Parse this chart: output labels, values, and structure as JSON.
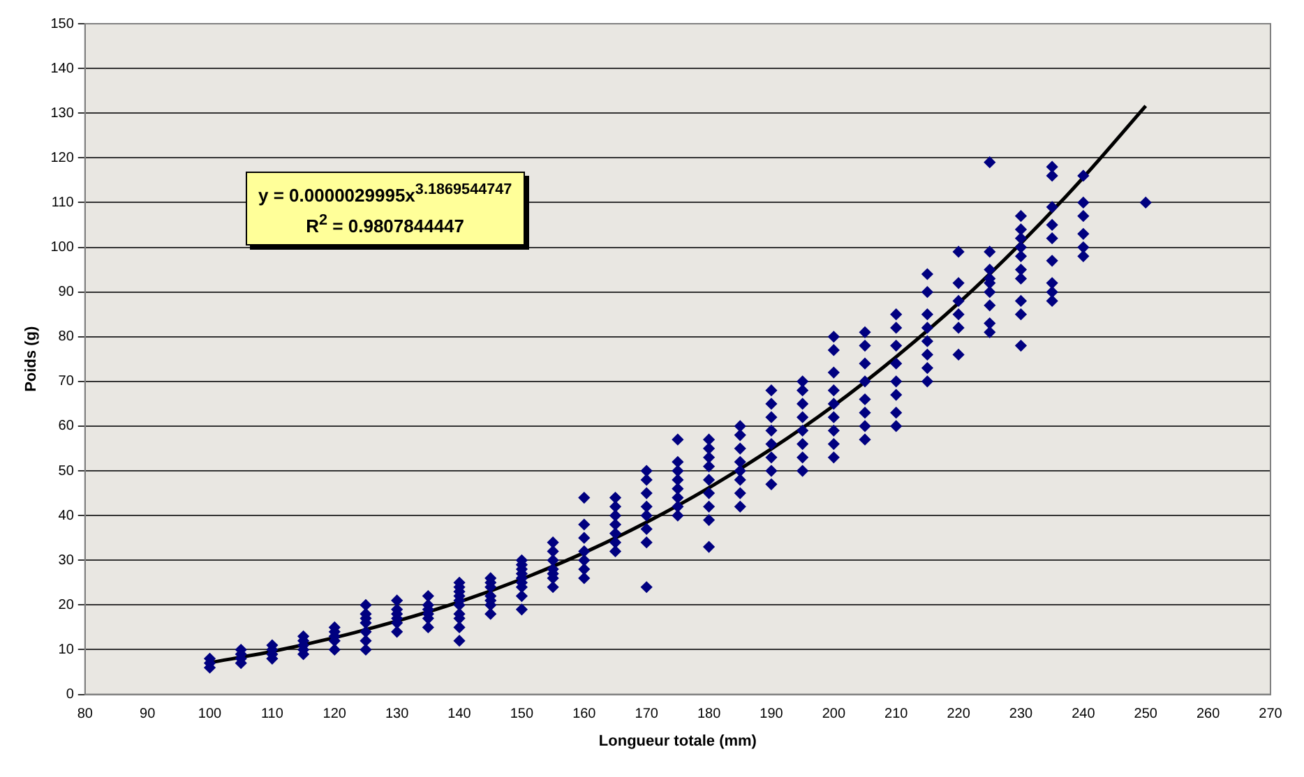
{
  "chart_data": {
    "type": "scatter",
    "xlabel": "Longueur totale (mm)",
    "ylabel": "Poids (g)",
    "xlim": [
      80,
      270
    ],
    "xticks": [
      80,
      90,
      100,
      110,
      120,
      130,
      140,
      150,
      160,
      170,
      180,
      190,
      200,
      210,
      220,
      230,
      240,
      250,
      260,
      270
    ],
    "ylim": [
      0,
      150
    ],
    "yticks": [
      0,
      10,
      20,
      30,
      40,
      50,
      60,
      70,
      80,
      90,
      100,
      110,
      120,
      130,
      140,
      150
    ],
    "grid": "y",
    "legend": false,
    "annotations": [
      "y = 0.0000029995x$^{3.1869544747}$",
      "R$^{2}$ = 0.9807844447"
    ],
    "series": [
      {
        "color": "#000080",
        "marker": "diamond",
        "x": [
          100,
          100,
          100,
          105,
          105,
          105,
          105,
          110,
          110,
          110,
          110,
          115,
          115,
          115,
          115,
          115,
          120,
          120,
          120,
          120,
          120,
          125,
          125,
          125,
          125,
          125,
          125,
          125,
          130,
          130,
          130,
          130,
          130,
          130,
          135,
          135,
          135,
          135,
          135,
          135,
          140,
          140,
          140,
          140,
          140,
          140,
          140,
          140,
          140,
          140,
          145,
          145,
          145,
          145,
          145,
          145,
          145,
          150,
          150,
          150,
          150,
          150,
          150,
          150,
          150,
          150,
          155,
          155,
          155,
          155,
          155,
          155,
          155,
          160,
          160,
          160,
          160,
          160,
          160,
          160,
          165,
          165,
          165,
          165,
          165,
          165,
          165,
          170,
          170,
          170,
          170,
          170,
          170,
          170,
          170,
          175,
          175,
          175,
          175,
          175,
          175,
          175,
          175,
          180,
          180,
          180,
          180,
          180,
          180,
          180,
          180,
          180,
          185,
          185,
          185,
          185,
          185,
          185,
          185,
          185,
          190,
          190,
          190,
          190,
          190,
          190,
          190,
          190,
          195,
          195,
          195,
          195,
          195,
          195,
          195,
          195,
          200,
          200,
          200,
          200,
          200,
          200,
          200,
          200,
          200,
          205,
          205,
          205,
          205,
          205,
          205,
          205,
          205,
          210,
          210,
          210,
          210,
          210,
          210,
          210,
          210,
          215,
          215,
          215,
          215,
          215,
          215,
          215,
          215,
          220,
          220,
          220,
          220,
          220,
          220,
          225,
          225,
          225,
          225,
          225,
          225,
          225,
          225,
          225,
          230,
          230,
          230,
          230,
          230,
          230,
          230,
          230,
          230,
          230,
          235,
          235,
          235,
          235,
          235,
          235,
          235,
          235,
          235,
          240,
          240,
          240,
          240,
          240,
          240,
          250
        ],
        "values": [
          6,
          7,
          8,
          7,
          8,
          9,
          10,
          8,
          9,
          10,
          11,
          9,
          10,
          11,
          12,
          13,
          10,
          12,
          13,
          14,
          15,
          10,
          12,
          14,
          16,
          17,
          18,
          20,
          14,
          16,
          17,
          18,
          19,
          21,
          15,
          17,
          18,
          19,
          20,
          22,
          12,
          15,
          17,
          18,
          20,
          21,
          22,
          23,
          24,
          25,
          18,
          20,
          21,
          22,
          24,
          25,
          26,
          19,
          22,
          24,
          25,
          26,
          27,
          28,
          29,
          30,
          24,
          26,
          27,
          28,
          30,
          32,
          34,
          26,
          28,
          30,
          32,
          35,
          38,
          44,
          32,
          34,
          36,
          38,
          40,
          42,
          44,
          24,
          34,
          37,
          40,
          42,
          45,
          48,
          50,
          40,
          42,
          44,
          46,
          48,
          50,
          52,
          57,
          33,
          39,
          42,
          45,
          48,
          51,
          53,
          55,
          57,
          42,
          45,
          48,
          50,
          52,
          55,
          58,
          60,
          47,
          50,
          53,
          56,
          59,
          62,
          65,
          68,
          50,
          53,
          56,
          59,
          62,
          65,
          68,
          70,
          53,
          56,
          59,
          62,
          65,
          68,
          72,
          77,
          80,
          57,
          60,
          63,
          66,
          70,
          74,
          78,
          81,
          60,
          63,
          67,
          70,
          74,
          78,
          82,
          85,
          70,
          73,
          76,
          79,
          82,
          85,
          90,
          94,
          76,
          82,
          85,
          88,
          92,
          99,
          81,
          83,
          87,
          90,
          92,
          93,
          95,
          99,
          119,
          78,
          85,
          88,
          93,
          95,
          98,
          100,
          102,
          104,
          107,
          88,
          90,
          92,
          97,
          102,
          105,
          109,
          116,
          118,
          98,
          100,
          103,
          107,
          110,
          116,
          110
        ]
      },
      {
        "type": "line",
        "color": "#000000",
        "marker": "none",
        "line_style": "solid",
        "x": [
          100,
          110,
          120,
          130,
          140,
          150,
          160,
          170,
          180,
          190,
          200,
          210,
          220,
          230,
          240,
          250
        ],
        "values": [
          7.1,
          9.6,
          12.7,
          16.4,
          20.7,
          25.8,
          31.7,
          38.5,
          46.2,
          54.9,
          64.6,
          75.5,
          87.5,
          100.9,
          115.6,
          131.6
        ]
      }
    ]
  }
}
